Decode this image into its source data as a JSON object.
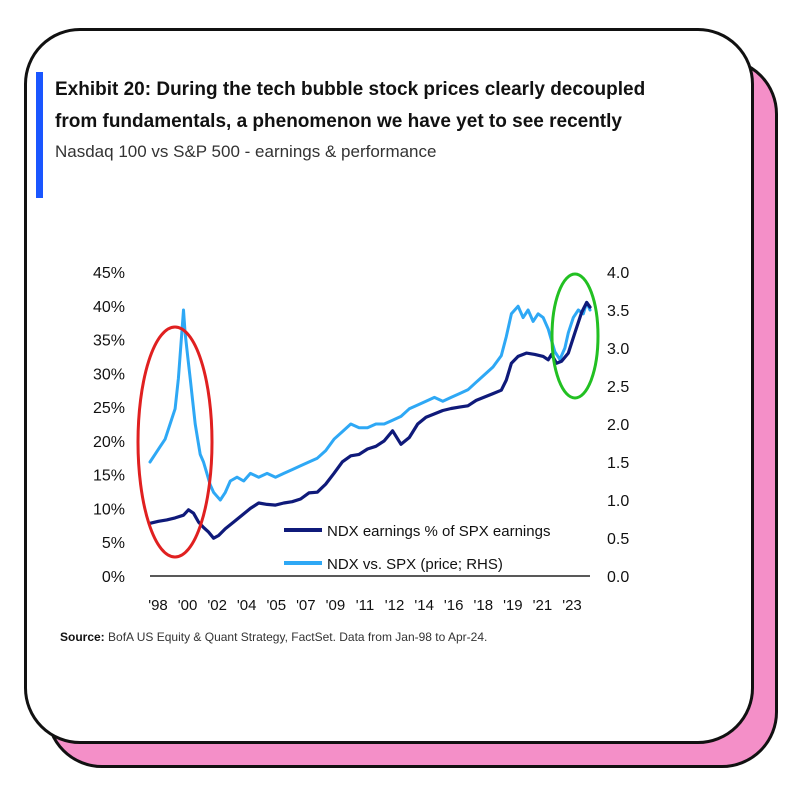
{
  "title": "Exhibit 20: During the tech bubble stock prices clearly decoupled from fundamentals, a phenomenon we have yet to see recently",
  "subtitle": "Nasdaq 100 vs S&P 500 - earnings & performance",
  "source_label": "Source:",
  "source_text": "BofA US Equity & Quant Strategy, FactSet. Data from Jan-98 to Apr-24.",
  "colors": {
    "accent_bar": "#1a56ff",
    "card_shadow": "#f48fc8",
    "earnings_line": "#0f1a7a",
    "price_line": "#2ea8f5",
    "red_ellipse": "#e02020",
    "green_ellipse": "#22c022"
  },
  "chart_data": {
    "type": "line",
    "title": "",
    "xlabel": "",
    "ylabel_left": "",
    "ylabel_right": "",
    "x_ticks": [
      "'98",
      "'00",
      "'02",
      "'04",
      "'05",
      "'07",
      "'09",
      "'11",
      "'12",
      "'14",
      "'16",
      "'18",
      "'19",
      "'21",
      "'23"
    ],
    "x_range": [
      1998.0,
      2024.3
    ],
    "y_left": {
      "range": [
        0,
        45
      ],
      "ticks": [
        "0%",
        "5%",
        "10%",
        "15%",
        "20%",
        "25%",
        "30%",
        "35%",
        "40%",
        "45%"
      ]
    },
    "y_right": {
      "range": [
        0,
        4
      ],
      "ticks": [
        "0.0",
        "0.5",
        "1.0",
        "1.5",
        "2.0",
        "2.5",
        "3.0",
        "3.5",
        "4.0"
      ]
    },
    "legend_position": "bottom-right",
    "grid": false,
    "annotations": [
      {
        "shape": "ellipse",
        "color": "red",
        "around_x": [
          1998.0,
          2002.2
        ]
      },
      {
        "shape": "ellipse",
        "color": "green",
        "around_x": [
          2022.0,
          2024.3
        ]
      }
    ],
    "series": [
      {
        "name": "NDX earnings % of SPX earnings",
        "axis": "left",
        "x": [
          1998.0,
          1998.5,
          1999.0,
          1999.5,
          2000.0,
          2000.3,
          2000.6,
          2000.9,
          2001.2,
          2001.5,
          2001.8,
          2002.1,
          2002.5,
          2003.0,
          2003.5,
          2004.0,
          2004.5,
          2005.0,
          2005.5,
          2006.0,
          2006.5,
          2007.0,
          2007.5,
          2008.0,
          2008.5,
          2009.0,
          2009.5,
          2010.0,
          2010.5,
          2011.0,
          2011.5,
          2012.0,
          2012.5,
          2013.0,
          2013.5,
          2014.0,
          2014.5,
          2015.0,
          2015.5,
          2016.0,
          2016.5,
          2017.0,
          2017.5,
          2018.0,
          2018.5,
          2019.0,
          2019.3,
          2019.6,
          2020.0,
          2020.5,
          2021.0,
          2021.5,
          2021.8,
          2022.0,
          2022.3,
          2022.6,
          2023.0,
          2023.4,
          2023.8,
          2024.1,
          2024.3
        ],
        "values": [
          7.8,
          8.1,
          8.3,
          8.6,
          9.0,
          9.8,
          9.3,
          8.0,
          7.2,
          6.5,
          5.6,
          6.0,
          7.0,
          8.0,
          9.0,
          10.0,
          10.8,
          10.6,
          10.5,
          10.8,
          11.0,
          11.4,
          12.3,
          12.4,
          13.6,
          15.2,
          16.9,
          17.8,
          18.0,
          18.8,
          19.2,
          20.0,
          21.5,
          19.5,
          20.5,
          22.5,
          23.5,
          24.0,
          24.5,
          24.8,
          25.0,
          25.2,
          26.0,
          26.5,
          27.0,
          27.5,
          29.0,
          31.5,
          32.5,
          33.0,
          32.8,
          32.5,
          32.0,
          32.8,
          31.5,
          31.8,
          33.0,
          36.0,
          39.0,
          40.5,
          39.8
        ]
      },
      {
        "name": "NDX vs. SPX (price; RHS)",
        "axis": "right",
        "x": [
          1998.0,
          1998.3,
          1998.6,
          1998.9,
          1999.2,
          1999.5,
          1999.7,
          1999.9,
          2000.0,
          2000.1,
          2000.25,
          2000.4,
          2000.55,
          2000.7,
          2000.85,
          2001.0,
          2001.2,
          2001.4,
          2001.6,
          2001.8,
          2002.0,
          2002.2,
          2002.5,
          2002.8,
          2003.2,
          2003.6,
          2004.0,
          2004.5,
          2005.0,
          2005.5,
          2006.0,
          2006.5,
          2007.0,
          2007.5,
          2008.0,
          2008.5,
          2009.0,
          2009.5,
          2010.0,
          2010.5,
          2011.0,
          2011.5,
          2012.0,
          2012.5,
          2013.0,
          2013.5,
          2014.0,
          2014.5,
          2015.0,
          2015.5,
          2016.0,
          2016.5,
          2017.0,
          2017.5,
          2018.0,
          2018.5,
          2019.0,
          2019.3,
          2019.6,
          2020.0,
          2020.3,
          2020.6,
          2020.9,
          2021.2,
          2021.5,
          2021.8,
          2022.0,
          2022.2,
          2022.5,
          2022.8,
          2023.0,
          2023.3,
          2023.6,
          2023.9,
          2024.1,
          2024.3
        ],
        "values": [
          1.5,
          1.6,
          1.7,
          1.8,
          2.0,
          2.2,
          2.6,
          3.2,
          3.5,
          3.2,
          2.9,
          2.6,
          2.3,
          2.0,
          1.8,
          1.6,
          1.5,
          1.35,
          1.2,
          1.1,
          1.05,
          1.0,
          1.1,
          1.25,
          1.3,
          1.25,
          1.35,
          1.3,
          1.35,
          1.3,
          1.35,
          1.4,
          1.45,
          1.5,
          1.55,
          1.65,
          1.8,
          1.9,
          2.0,
          1.95,
          1.95,
          2.0,
          2.0,
          2.05,
          2.1,
          2.2,
          2.25,
          2.3,
          2.35,
          2.3,
          2.35,
          2.4,
          2.45,
          2.55,
          2.65,
          2.75,
          2.9,
          3.15,
          3.45,
          3.55,
          3.4,
          3.5,
          3.35,
          3.45,
          3.4,
          3.25,
          3.1,
          2.95,
          2.85,
          3.0,
          3.2,
          3.4,
          3.5,
          3.45,
          3.6,
          3.5
        ]
      }
    ]
  }
}
